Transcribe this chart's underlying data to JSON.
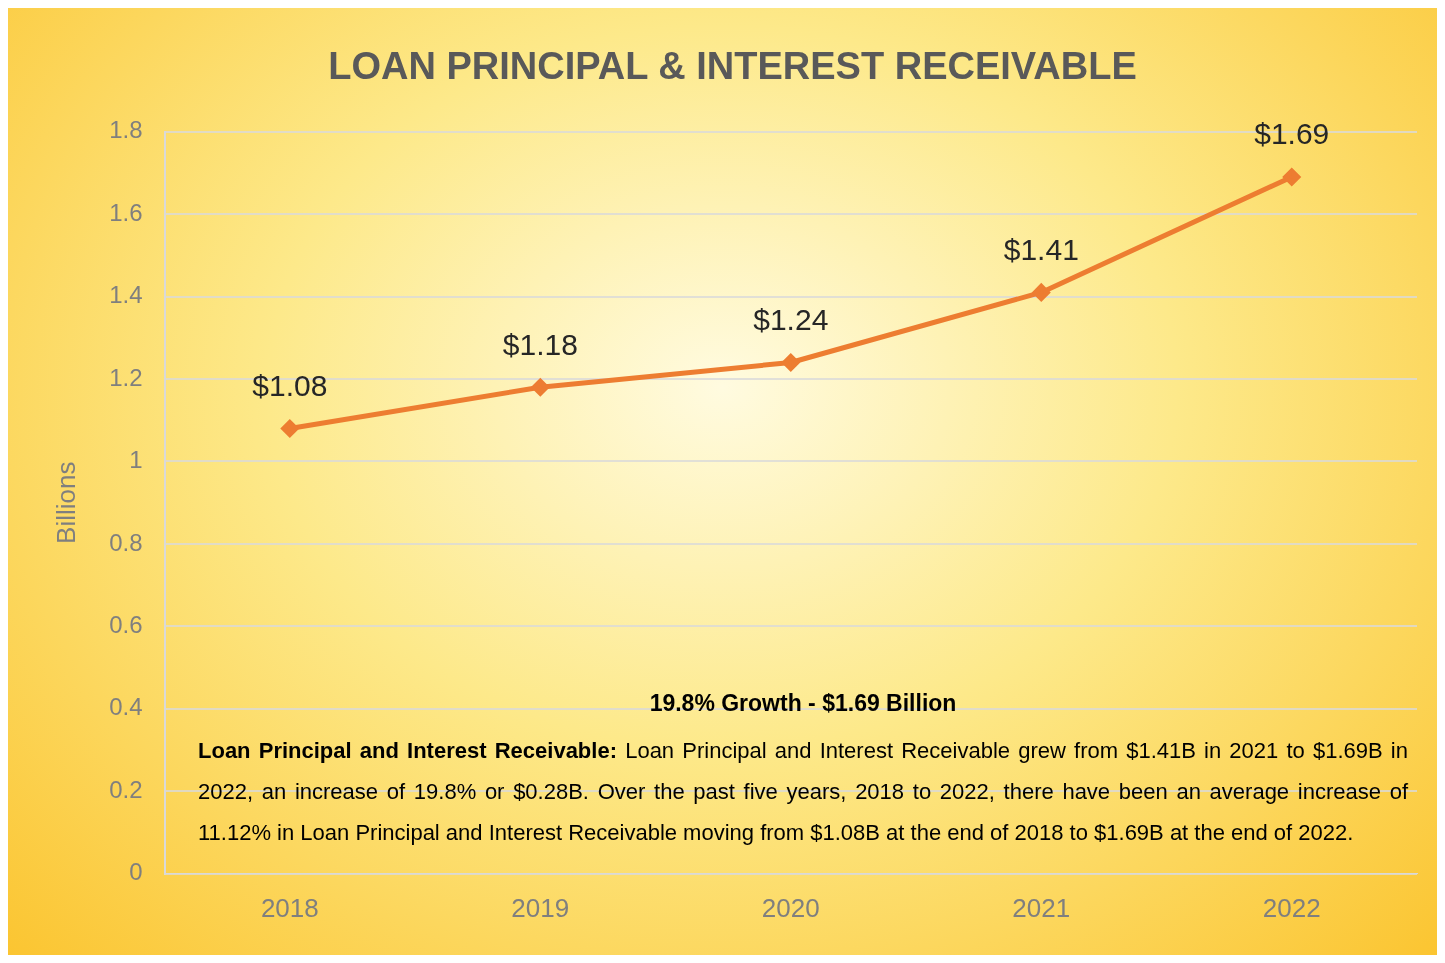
{
  "chart_data": {
    "type": "line",
    "title": "LOAN PRINCIPAL & INTEREST RECEIVABLE",
    "ylabel": "Billions",
    "categories": [
      "2018",
      "2019",
      "2020",
      "2021",
      "2022"
    ],
    "series": [
      {
        "color": "#ed7d31",
        "values": [
          1.08,
          1.18,
          1.24,
          1.41,
          1.69
        ],
        "value_labels": [
          "$1.08",
          "$1.18",
          "$1.24",
          "$1.41",
          "$1.69"
        ]
      }
    ],
    "ylim": [
      0,
      1.8
    ],
    "yticks": [
      0,
      0.2,
      0.4,
      0.6,
      0.8,
      1,
      1.2,
      1.4,
      1.6,
      1.8
    ],
    "grid": "y",
    "marker": "diamond",
    "line_style": "solid",
    "legend": false,
    "annotations": [
      "19.8% Growth - $1.69 Billion",
      "Loan Principal and Interest Receivable:",
      "Loan Principal and Interest Receivable grew from $1.41B in 2021 to $1.69B in 2022, an increase of 19.8% or $0.28B. Over the past five years, 2018 to 2022, there have been an average increase of 11.12% in Loan Principal and Interest Receivable moving from $1.08B at the end of 2018 to $1.69B at the end of 2022."
    ]
  }
}
